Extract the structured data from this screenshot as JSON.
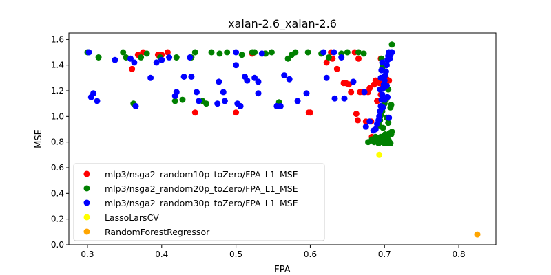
{
  "chart_data": {
    "type": "scatter",
    "title": "xalan-2.6_xalan-2.6",
    "xlabel": "FPA",
    "ylabel": "MSE",
    "xlim": [
      0.275,
      0.85
    ],
    "ylim": [
      0.0,
      1.65
    ],
    "xticks": [
      0.3,
      0.4,
      0.5,
      0.6,
      0.7,
      0.8
    ],
    "xtick_labels": [
      "0.3",
      "0.4",
      "0.5",
      "0.6",
      "0.7",
      "0.8"
    ],
    "yticks": [
      0.0,
      0.2,
      0.4,
      0.6,
      0.8,
      1.0,
      1.2,
      1.4,
      1.6
    ],
    "ytick_labels": [
      "0.0",
      "0.2",
      "0.4",
      "0.6",
      "0.8",
      "1.0",
      "1.2",
      "1.4",
      "1.6"
    ],
    "grid": false,
    "legend_position": "lower-left",
    "series": [
      {
        "name": "mlp3/nsga2_random10p_toZero/FPA_L1_MSE",
        "color": "#ff0000",
        "points": [
          [
            0.36,
            1.37
          ],
          [
            0.368,
            1.48
          ],
          [
            0.375,
            1.5
          ],
          [
            0.395,
            1.48
          ],
          [
            0.4,
            1.48
          ],
          [
            0.408,
            1.5
          ],
          [
            0.445,
            1.03
          ],
          [
            0.5,
            1.03
          ],
          [
            0.522,
            1.49
          ],
          [
            0.598,
            1.03
          ],
          [
            0.6,
            1.03
          ],
          [
            0.622,
            1.42
          ],
          [
            0.628,
            1.5
          ],
          [
            0.63,
            1.45
          ],
          [
            0.636,
            1.37
          ],
          [
            0.645,
            1.26
          ],
          [
            0.648,
            1.26
          ],
          [
            0.652,
            1.25
          ],
          [
            0.655,
            1.19
          ],
          [
            0.66,
            1.5
          ],
          [
            0.662,
            1.02
          ],
          [
            0.664,
            0.97
          ],
          [
            0.665,
            1.45
          ],
          [
            0.667,
            1.19
          ],
          [
            0.672,
            1.19
          ],
          [
            0.675,
            0.96
          ],
          [
            0.678,
            1.19
          ],
          [
            0.68,
            1.22
          ],
          [
            0.682,
            0.96
          ],
          [
            0.683,
            0.84
          ],
          [
            0.686,
            1.25
          ],
          [
            0.688,
            1.28
          ],
          [
            0.69,
            0.82
          ],
          [
            0.691,
            1.27
          ],
          [
            0.693,
            1.26
          ],
          [
            0.695,
            1.45
          ],
          [
            0.697,
            1.22
          ],
          [
            0.7,
            1.4
          ],
          [
            0.703,
            1.29
          ],
          [
            0.706,
            1.28
          ],
          [
            0.695,
            1.17
          ],
          [
            0.69,
            1.12
          ]
        ]
      },
      {
        "name": "mlp3/nsga2_random20p_toZero/FPA_L1_MSE",
        "color": "#008000",
        "points": [
          [
            0.3,
            1.5
          ],
          [
            0.315,
            1.46
          ],
          [
            0.348,
            1.5
          ],
          [
            0.352,
            1.46
          ],
          [
            0.362,
            1.1
          ],
          [
            0.372,
            1.46
          ],
          [
            0.38,
            1.49
          ],
          [
            0.398,
            1.46
          ],
          [
            0.418,
            1.12
          ],
          [
            0.42,
            1.46
          ],
          [
            0.428,
            1.13
          ],
          [
            0.44,
            1.46
          ],
          [
            0.445,
            1.5
          ],
          [
            0.455,
            1.12
          ],
          [
            0.46,
            1.1
          ],
          [
            0.467,
            1.5
          ],
          [
            0.478,
            1.49
          ],
          [
            0.488,
            1.5
          ],
          [
            0.508,
            1.48
          ],
          [
            0.522,
            1.5
          ],
          [
            0.525,
            1.5
          ],
          [
            0.54,
            1.49
          ],
          [
            0.548,
            1.5
          ],
          [
            0.558,
            1.11
          ],
          [
            0.57,
            1.45
          ],
          [
            0.575,
            1.48
          ],
          [
            0.58,
            1.5
          ],
          [
            0.597,
            1.5
          ],
          [
            0.615,
            1.49
          ],
          [
            0.625,
            1.46
          ],
          [
            0.642,
            1.49
          ],
          [
            0.65,
            1.5
          ],
          [
            0.665,
            1.5
          ],
          [
            0.672,
            1.49
          ],
          [
            0.678,
            0.8
          ],
          [
            0.683,
            0.82
          ],
          [
            0.686,
            0.8
          ],
          [
            0.688,
            0.84
          ],
          [
            0.69,
            0.82
          ],
          [
            0.692,
            0.79
          ],
          [
            0.694,
            0.8
          ],
          [
            0.695,
            0.84
          ],
          [
            0.697,
            0.8
          ],
          [
            0.698,
            0.81
          ],
          [
            0.7,
            0.79
          ],
          [
            0.701,
            0.86
          ],
          [
            0.702,
            0.82
          ],
          [
            0.703,
            0.8
          ],
          [
            0.704,
            0.84
          ],
          [
            0.705,
            0.79
          ],
          [
            0.706,
            0.81
          ],
          [
            0.707,
            0.87
          ],
          [
            0.708,
            0.79
          ],
          [
            0.709,
            0.86
          ],
          [
            0.71,
            0.88
          ],
          [
            0.693,
            0.93
          ],
          [
            0.694,
            0.97
          ],
          [
            0.695,
            1.01
          ],
          [
            0.697,
            1.04
          ],
          [
            0.7,
            1.1
          ],
          [
            0.702,
            1.13
          ],
          [
            0.705,
            1.21
          ],
          [
            0.708,
            1.07
          ],
          [
            0.709,
            1.09
          ],
          [
            0.697,
            1.38
          ],
          [
            0.696,
            1.45
          ],
          [
            0.71,
            1.56
          ],
          [
            0.703,
            0.99
          ],
          [
            0.705,
            0.95
          ],
          [
            0.698,
            0.91
          ]
        ]
      },
      {
        "name": "mlp3/nsga2_random30p_toZero/FPA_L1_MSE",
        "color": "#0000ff",
        "points": [
          [
            0.302,
            1.5
          ],
          [
            0.305,
            1.15
          ],
          [
            0.308,
            1.18
          ],
          [
            0.313,
            1.12
          ],
          [
            0.337,
            1.44
          ],
          [
            0.358,
            1.45
          ],
          [
            0.363,
            1.42
          ],
          [
            0.365,
            1.08
          ],
          [
            0.385,
            1.3
          ],
          [
            0.393,
            1.42
          ],
          [
            0.4,
            1.44
          ],
          [
            0.41,
            1.46
          ],
          [
            0.418,
            1.16
          ],
          [
            0.42,
            1.19
          ],
          [
            0.43,
            1.31
          ],
          [
            0.438,
            1.46
          ],
          [
            0.44,
            1.31
          ],
          [
            0.447,
            1.19
          ],
          [
            0.45,
            1.12
          ],
          [
            0.475,
            1.1
          ],
          [
            0.477,
            1.27
          ],
          [
            0.483,
            1.19
          ],
          [
            0.485,
            1.12
          ],
          [
            0.5,
            1.5
          ],
          [
            0.5,
            1.4
          ],
          [
            0.502,
            1.1
          ],
          [
            0.506,
            1.08
          ],
          [
            0.512,
            1.31
          ],
          [
            0.515,
            1.28
          ],
          [
            0.525,
            1.3
          ],
          [
            0.53,
            1.18
          ],
          [
            0.53,
            1.27
          ],
          [
            0.535,
            1.49
          ],
          [
            0.555,
            1.08
          ],
          [
            0.56,
            1.08
          ],
          [
            0.565,
            1.32
          ],
          [
            0.572,
            1.29
          ],
          [
            0.583,
            1.12
          ],
          [
            0.595,
            1.18
          ],
          [
            0.618,
            1.5
          ],
          [
            0.622,
            1.3
          ],
          [
            0.632,
            1.5
          ],
          [
            0.633,
            1.14
          ],
          [
            0.642,
            1.46
          ],
          [
            0.646,
            1.14
          ],
          [
            0.658,
            1.27
          ],
          [
            0.673,
            1.19
          ],
          [
            0.675,
            0.92
          ],
          [
            0.68,
            0.96
          ],
          [
            0.685,
            0.89
          ],
          [
            0.688,
            0.9
          ],
          [
            0.69,
            0.94
          ],
          [
            0.692,
            0.97
          ],
          [
            0.693,
            1.0
          ],
          [
            0.694,
            1.04
          ],
          [
            0.695,
            1.08
          ],
          [
            0.696,
            1.13
          ],
          [
            0.697,
            1.17
          ],
          [
            0.698,
            1.22
          ],
          [
            0.699,
            1.25
          ],
          [
            0.7,
            1.28
          ],
          [
            0.701,
            1.32
          ],
          [
            0.702,
            1.35
          ],
          [
            0.703,
            1.4
          ],
          [
            0.704,
            1.44
          ],
          [
            0.705,
            1.47
          ],
          [
            0.706,
            1.5
          ],
          [
            0.707,
            1.45
          ],
          [
            0.708,
            1.48
          ],
          [
            0.709,
            1.5
          ],
          [
            0.71,
            1.5
          ],
          [
            0.703,
            1.24
          ],
          [
            0.7,
            1.13
          ],
          [
            0.698,
            1.07
          ],
          [
            0.704,
            1.15
          ],
          [
            0.706,
            0.99
          ],
          [
            0.694,
            1.21
          ],
          [
            0.696,
            1.36
          ],
          [
            0.695,
            1.3
          ],
          [
            0.697,
            1.42
          ]
        ]
      },
      {
        "name": "LassoLarsCV",
        "color": "#ffff00",
        "points": [
          [
            0.693,
            0.7
          ]
        ]
      },
      {
        "name": "RandomForestRegressor",
        "color": "#ffa500",
        "points": [
          [
            0.825,
            0.08
          ]
        ]
      }
    ]
  }
}
